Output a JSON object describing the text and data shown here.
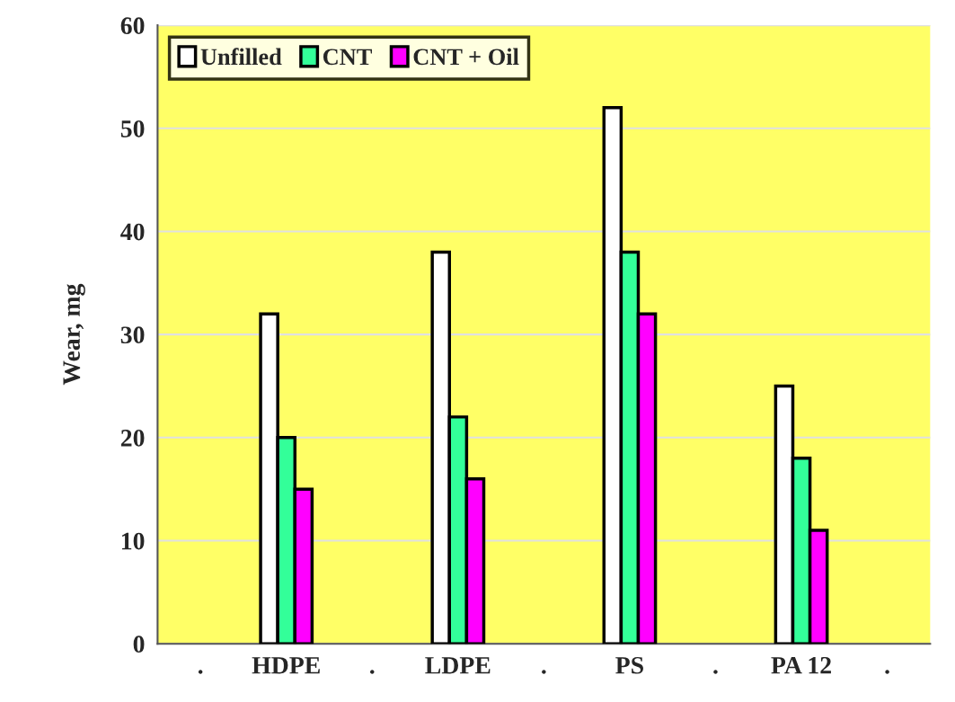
{
  "chart_data": {
    "type": "bar",
    "ylabel": "Wear, mg",
    "categories": [
      ".",
      "HDPE",
      ".",
      "LDPE",
      ".",
      "PS",
      ".",
      "PA 12",
      "."
    ],
    "series": [
      {
        "name": "Unfilled",
        "color": "#ffffff",
        "values": [
          null,
          32,
          null,
          38,
          null,
          52,
          null,
          25,
          null
        ]
      },
      {
        "name": "CNT",
        "color": "#33ff99",
        "values": [
          null,
          20,
          null,
          22,
          null,
          38,
          null,
          18,
          null
        ]
      },
      {
        "name": "CNT + Oil",
        "color": "#ff00ff",
        "values": [
          null,
          15,
          null,
          16,
          null,
          32,
          null,
          11,
          null
        ]
      }
    ],
    "ylim": [
      0,
      60
    ],
    "yticks": [
      0,
      10,
      20,
      30,
      40,
      50,
      60
    ],
    "grid": "y",
    "legend": "top left"
  }
}
